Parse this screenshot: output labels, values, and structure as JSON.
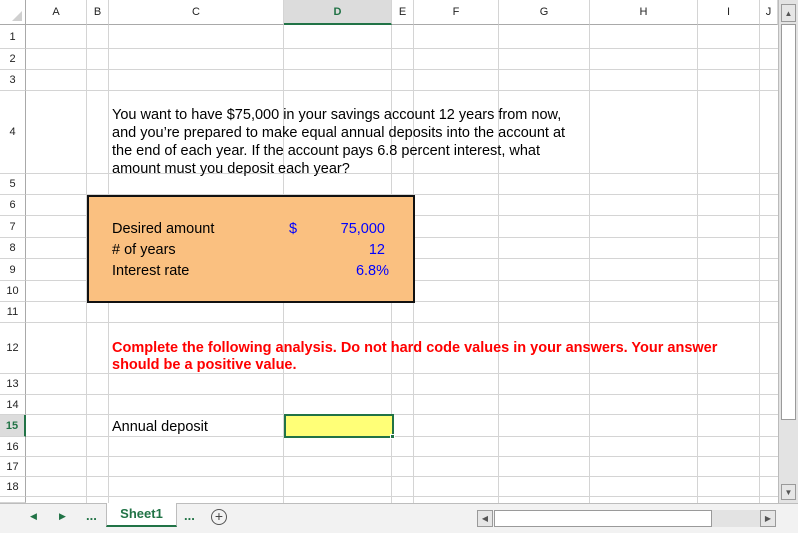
{
  "columns": [
    "A",
    "B",
    "C",
    "D",
    "E",
    "F",
    "G",
    "H",
    "I",
    "J"
  ],
  "selected_column": "D",
  "rows": [
    "1",
    "2",
    "3",
    "4",
    "5",
    "6",
    "7",
    "8",
    "9",
    "10",
    "11",
    "12",
    "13",
    "14",
    "15",
    "16",
    "17",
    "18"
  ],
  "selected_row": "15",
  "question": "You want to have $75,000 in your savings account 12 years from now, and you’re prepared to make equal annual deposits into the account at the end of each year. If the account pays 6.8 percent interest, what amount must you deposit each year?",
  "inputs": {
    "fill_color": "#fac080",
    "items": [
      {
        "label": "Desired amount",
        "currency": "$",
        "value": "75,000"
      },
      {
        "label": "# of years",
        "currency": "",
        "value": "12"
      },
      {
        "label": "Interest rate",
        "currency": "",
        "value": "6.8%"
      }
    ]
  },
  "instruction": "Complete the following analysis. Do not hard code values in your answers. Your answer should be a positive value.",
  "instruction_color": "#ff0000",
  "answer": {
    "label": "Annual deposit",
    "value": "",
    "fill_color": "#ffff77"
  },
  "tabs": {
    "sheets": [
      "Sheet1"
    ],
    "active": "Sheet1",
    "ellipsis": "...",
    "add_icon": "plus-circle-icon"
  },
  "accent": "#217346"
}
